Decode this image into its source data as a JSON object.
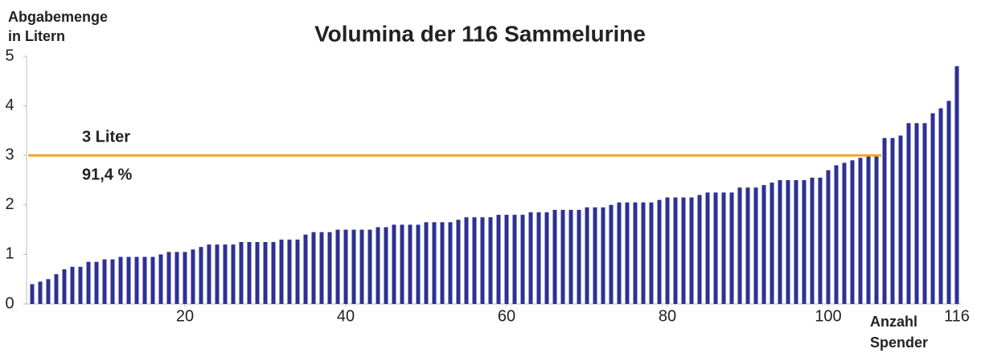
{
  "chart_data": {
    "type": "bar",
    "title": "Volumina der 116 Sammelurine",
    "ylabel": [
      "Abgabemenge",
      "in Litern"
    ],
    "xlabel": [
      "Anzahl",
      "Spender"
    ],
    "color": "#2e3192",
    "x": [
      1,
      2,
      3,
      4,
      5,
      6,
      7,
      8,
      9,
      10,
      11,
      12,
      13,
      14,
      15,
      16,
      17,
      18,
      19,
      20,
      21,
      22,
      23,
      24,
      25,
      26,
      27,
      28,
      29,
      30,
      31,
      32,
      33,
      34,
      35,
      36,
      37,
      38,
      39,
      40,
      41,
      42,
      43,
      44,
      45,
      46,
      47,
      48,
      49,
      50,
      51,
      52,
      53,
      54,
      55,
      56,
      57,
      58,
      59,
      60,
      61,
      62,
      63,
      64,
      65,
      66,
      67,
      68,
      69,
      70,
      71,
      72,
      73,
      74,
      75,
      76,
      77,
      78,
      79,
      80,
      81,
      82,
      83,
      84,
      85,
      86,
      87,
      88,
      89,
      90,
      91,
      92,
      93,
      94,
      95,
      96,
      97,
      98,
      99,
      100,
      101,
      102,
      103,
      104,
      105,
      106,
      107,
      108,
      109,
      110,
      111,
      112,
      113,
      114,
      115,
      116
    ],
    "values": [
      0.4,
      0.45,
      0.5,
      0.6,
      0.7,
      0.75,
      0.75,
      0.85,
      0.85,
      0.9,
      0.9,
      0.95,
      0.95,
      0.95,
      0.95,
      0.95,
      1.0,
      1.05,
      1.05,
      1.05,
      1.1,
      1.15,
      1.2,
      1.2,
      1.2,
      1.2,
      1.25,
      1.25,
      1.25,
      1.25,
      1.25,
      1.3,
      1.3,
      1.3,
      1.4,
      1.45,
      1.45,
      1.45,
      1.5,
      1.5,
      1.5,
      1.5,
      1.5,
      1.55,
      1.55,
      1.6,
      1.6,
      1.6,
      1.6,
      1.65,
      1.65,
      1.65,
      1.65,
      1.7,
      1.75,
      1.75,
      1.75,
      1.75,
      1.8,
      1.8,
      1.8,
      1.8,
      1.85,
      1.85,
      1.85,
      1.9,
      1.9,
      1.9,
      1.9,
      1.95,
      1.95,
      1.95,
      2.0,
      2.05,
      2.05,
      2.05,
      2.05,
      2.05,
      2.1,
      2.15,
      2.15,
      2.15,
      2.15,
      2.2,
      2.25,
      2.25,
      2.25,
      2.25,
      2.35,
      2.35,
      2.35,
      2.4,
      2.45,
      2.5,
      2.5,
      2.5,
      2.5,
      2.55,
      2.55,
      2.7,
      2.8,
      2.85,
      2.9,
      2.95,
      3.0,
      3.0,
      3.35,
      3.35,
      3.4,
      3.65,
      3.65,
      3.65,
      3.85,
      3.95,
      4.1,
      4.8
    ],
    "xlim": [
      0.3,
      116.5
    ],
    "xticks": [
      20,
      40,
      60,
      80,
      100,
      116
    ],
    "ylim": [
      0,
      5
    ],
    "yticks": [
      0,
      1,
      2,
      3,
      4,
      5
    ],
    "reference_line": {
      "value": 3,
      "color": "#f5a623",
      "label": "3 Liter",
      "sublabel": "91,4 %"
    }
  }
}
